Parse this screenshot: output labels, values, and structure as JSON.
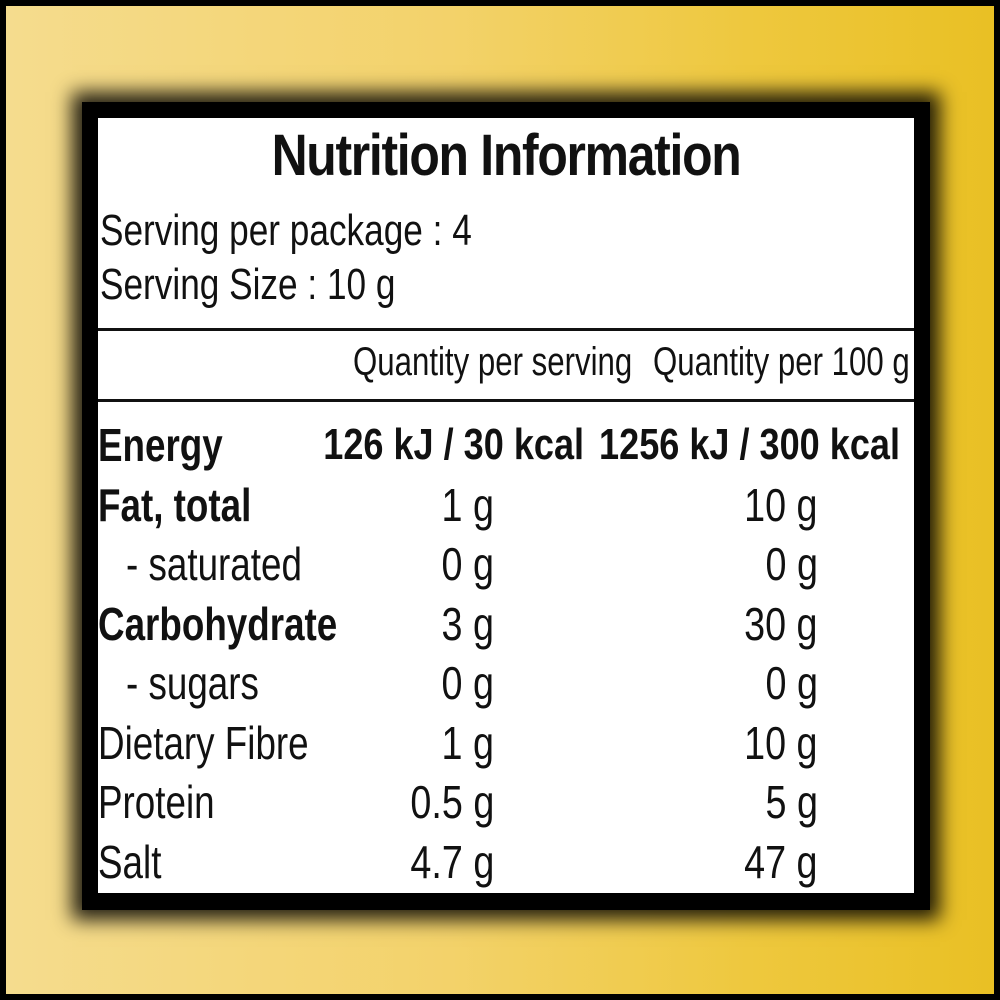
{
  "title": "Nutrition Information",
  "serving_per_package": "Serving per package : 4",
  "serving_size": "Serving Size : 10 g",
  "columns": {
    "per_serving": "Quantity per serving",
    "per_100g": "Quantity per 100 g"
  },
  "rows": [
    {
      "name": "Energy",
      "per_serving": "126 kJ / 30 kcal",
      "per_100g": "1256 kJ / 300 kcal"
    },
    {
      "name": "Fat, total",
      "per_serving": "1 g",
      "per_100g": "10 g"
    },
    {
      "name": "- saturated",
      "per_serving": "0 g",
      "per_100g": "0 g"
    },
    {
      "name": "Carbohydrate",
      "per_serving": "3 g",
      "per_100g": "30 g"
    },
    {
      "name": "- sugars",
      "per_serving": "0 g",
      "per_100g": "0 g"
    },
    {
      "name": "Dietary Fibre",
      "per_serving": "1 g",
      "per_100g": "10 g"
    },
    {
      "name": "Protein",
      "per_serving": "0.5 g",
      "per_100g": "5 g"
    },
    {
      "name": "Salt",
      "per_serving": "4.7 g",
      "per_100g": "47 g"
    }
  ],
  "colors": {
    "background_light": "#f5dc8e",
    "background_dark": "#e9c024",
    "label_bg": "#ffffff",
    "text": "#111111"
  }
}
